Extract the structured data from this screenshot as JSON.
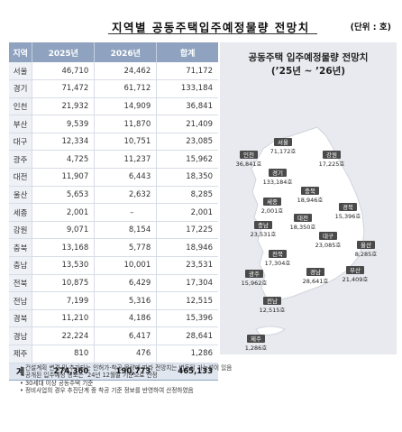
{
  "title": "지역별 공동주택입주예정물량 전망치",
  "unit": "(단위 : 호)",
  "table": {
    "headers": [
      "지역",
      "2025년",
      "2026년",
      "합계"
    ],
    "rows": [
      {
        "region": "서울",
        "y2025": "46,710",
        "y2026": "24,462",
        "total": "71,172"
      },
      {
        "region": "경기",
        "y2025": "71,472",
        "y2026": "61,712",
        "total": "133,184"
      },
      {
        "region": "인천",
        "y2025": "21,932",
        "y2026": "14,909",
        "total": "36,841"
      },
      {
        "region": "부산",
        "y2025": "9,539",
        "y2026": "11,870",
        "total": "21,409"
      },
      {
        "region": "대구",
        "y2025": "12,334",
        "y2026": "10,751",
        "total": "23,085"
      },
      {
        "region": "광주",
        "y2025": "4,725",
        "y2026": "11,237",
        "total": "15,962"
      },
      {
        "region": "대전",
        "y2025": "11,907",
        "y2026": "6,443",
        "total": "18,350"
      },
      {
        "region": "울산",
        "y2025": "5,653",
        "y2026": "2,632",
        "total": "8,285"
      },
      {
        "region": "세종",
        "y2025": "2,001",
        "y2026": "–",
        "total": "2,001"
      },
      {
        "region": "강원",
        "y2025": "9,071",
        "y2026": "8,154",
        "total": "17,225"
      },
      {
        "region": "충북",
        "y2025": "13,168",
        "y2026": "5,778",
        "total": "18,946"
      },
      {
        "region": "충남",
        "y2025": "13,530",
        "y2026": "10,001",
        "total": "23,531"
      },
      {
        "region": "전북",
        "y2025": "10,875",
        "y2026": "6,429",
        "total": "17,304"
      },
      {
        "region": "전남",
        "y2025": "7,199",
        "y2026": "5,316",
        "total": "12,515"
      },
      {
        "region": "경북",
        "y2025": "11,210",
        "y2026": "4,186",
        "total": "15,396"
      },
      {
        "region": "경남",
        "y2025": "22,224",
        "y2026": "6,417",
        "total": "28,641"
      },
      {
        "region": "제주",
        "y2025": "810",
        "y2026": "476",
        "total": "1,286"
      }
    ],
    "total_row": {
      "region": "계",
      "y2025": "274,360",
      "y2026": "190,773",
      "total": "465,133"
    }
  },
  "map": {
    "title_line1": "공동주택 입주예정물량 전망치",
    "title_line2": "(’25년 ~ ’26년)",
    "regions": [
      {
        "id": "seoul",
        "name": "서울",
        "value": "71,172호"
      },
      {
        "id": "incheon",
        "name": "인천",
        "value": "36,841호"
      },
      {
        "id": "gangwon",
        "name": "강원",
        "value": "17,225호"
      },
      {
        "id": "gyeonggi",
        "name": "경기",
        "value": "133,184호"
      },
      {
        "id": "chungbuk",
        "name": "충북",
        "value": "18,946호"
      },
      {
        "id": "sejong",
        "name": "세종",
        "value": "2,001호"
      },
      {
        "id": "chungnam",
        "name": "충남",
        "value": "23,531호"
      },
      {
        "id": "daejeon",
        "name": "대전",
        "value": "18,350호"
      },
      {
        "id": "gyeongbuk",
        "name": "경북",
        "value": "15,396호"
      },
      {
        "id": "daegu",
        "name": "대구",
        "value": "23,085호"
      },
      {
        "id": "jeonbuk",
        "name": "전북",
        "value": "17,304호"
      },
      {
        "id": "ulsan",
        "name": "울산",
        "value": "8,285호"
      },
      {
        "id": "gwangju",
        "name": "광주",
        "value": "15,962호"
      },
      {
        "id": "gyeongnam",
        "name": "경남",
        "value": "28,641호"
      },
      {
        "id": "busan",
        "name": "부산",
        "value": "21,409호"
      },
      {
        "id": "jeonnam",
        "name": "전남",
        "value": "12,515호"
      },
      {
        "id": "jeju",
        "name": "제주",
        "value": "1,286호"
      }
    ]
  },
  "notes": [
    "• 건설계획 변경 및 추가되는 인허가·착공 물량에 따라 전망치는 변동될 가능성이 있음",
    "• 공개된 입주예정 정보는 ’24년 12월말 기준으로 산정",
    "• 30세대 이상 공동주택 기준",
    "• 정비사업의 경우 추진단계 중 착공 기준 정보를 반영하여 산정하였음"
  ],
  "colors": {
    "header_bg": "#8fa3c0",
    "region_badge": "#4a4a4a",
    "map_land": "#ffffff",
    "map_bg": "#e8eaef"
  }
}
